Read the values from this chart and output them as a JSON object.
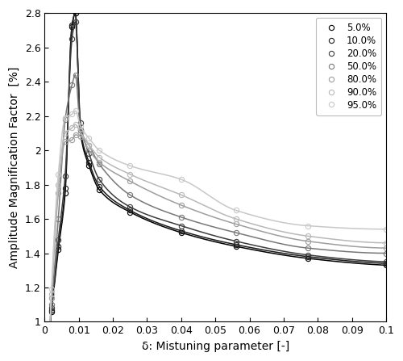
{
  "title": "",
  "xlabel": "δ: Mistuning parameter [-]",
  "ylabel": "Amplitude Magnification Factor  [%]",
  "xlim": [
    0,
    0.1
  ],
  "ylim": [
    1.0,
    2.8
  ],
  "yticks": [
    1.0,
    1.2,
    1.4,
    1.6,
    1.8,
    2.0,
    2.2,
    2.4,
    2.6,
    2.8
  ],
  "xticks": [
    0.0,
    0.01,
    0.02,
    0.03,
    0.04,
    0.05,
    0.06,
    0.07,
    0.08,
    0.09,
    0.1
  ],
  "legend_labels": [
    "5.0%",
    "10.0%",
    "20.0%",
    "50.0%",
    "80.0%",
    "90.0%",
    "95.0%"
  ],
  "x_data": [
    0.002,
    0.004,
    0.006,
    0.008,
    0.009,
    0.0105,
    0.013,
    0.016,
    0.025,
    0.04,
    0.056,
    0.077,
    0.1
  ],
  "curves": {
    "5.0%": {
      "color": "#000000",
      "y": [
        1.06,
        1.42,
        1.75,
        2.72,
        2.8,
        2.1,
        1.91,
        1.77,
        1.64,
        1.52,
        1.44,
        1.37,
        1.33
      ]
    },
    "10.0%": {
      "color": "#1c1c1c",
      "y": [
        1.07,
        1.44,
        1.78,
        2.73,
        2.8,
        2.12,
        1.93,
        1.79,
        1.65,
        1.53,
        1.45,
        1.38,
        1.34
      ]
    },
    "20.0%": {
      "color": "#3c3c3c",
      "y": [
        1.08,
        1.48,
        1.85,
        2.65,
        2.75,
        2.16,
        1.98,
        1.83,
        1.67,
        1.56,
        1.47,
        1.39,
        1.35
      ]
    },
    "50.0%": {
      "color": "#787878",
      "y": [
        1.1,
        1.6,
        2.18,
        2.38,
        2.44,
        2.12,
        2.03,
        1.92,
        1.74,
        1.61,
        1.52,
        1.43,
        1.4
      ]
    },
    "80.0%": {
      "color": "#9e9e9e",
      "y": [
        1.14,
        1.75,
        2.05,
        2.06,
        2.09,
        2.08,
        2.0,
        1.93,
        1.82,
        1.68,
        1.57,
        1.47,
        1.43
      ]
    },
    "90.0%": {
      "color": "#b8b8b8",
      "y": [
        1.16,
        1.8,
        2.1,
        2.13,
        2.15,
        2.1,
        2.03,
        1.96,
        1.86,
        1.74,
        1.6,
        1.5,
        1.46
      ]
    },
    "95.0%": {
      "color": "#c8c8c8",
      "y": [
        1.19,
        1.86,
        2.19,
        2.21,
        2.23,
        2.14,
        2.07,
        2.0,
        1.91,
        1.83,
        1.65,
        1.56,
        1.54
      ]
    }
  },
  "background_color": "#ffffff",
  "marker": "o",
  "markersize": 4.5,
  "linewidth": 1.1
}
